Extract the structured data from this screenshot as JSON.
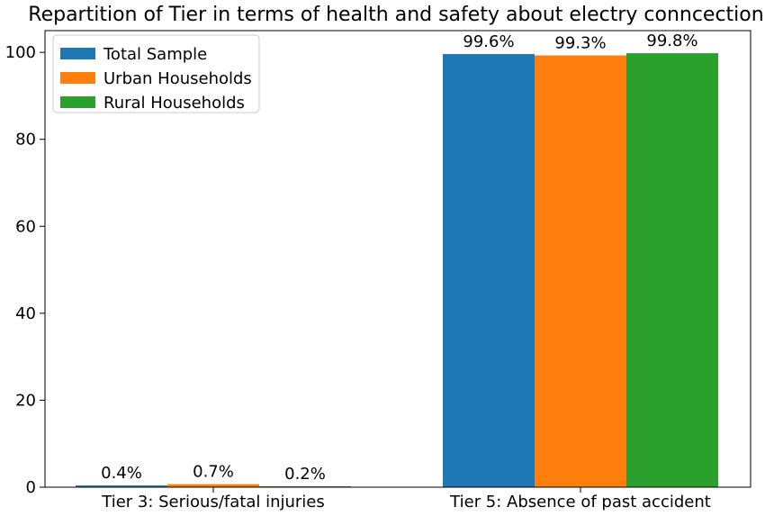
{
  "chart_data": {
    "type": "bar",
    "title": "Repartition of Tier in terms of health and safety about electry conncection",
    "xlabel": "",
    "ylabel": "",
    "categories": [
      "Tier 3: Serious/fatal injuries",
      "Tier 5: Absence of past accident"
    ],
    "series": [
      {
        "name": "Total Sample",
        "color": "#1f77b4",
        "values": [
          0.4,
          99.6
        ],
        "labels": [
          "0.4%",
          "99.6%"
        ]
      },
      {
        "name": "Urban Households",
        "color": "#ff7f0e",
        "values": [
          0.7,
          99.3
        ],
        "labels": [
          "0.7%",
          "99.3%"
        ]
      },
      {
        "name": "Rural Households",
        "color": "#2ca02c",
        "values": [
          0.2,
          99.8
        ],
        "labels": [
          "0.2%",
          "99.8%"
        ]
      }
    ],
    "ylim": [
      0,
      105
    ],
    "yticks": [
      0,
      20,
      40,
      60,
      80,
      100
    ],
    "grid": false,
    "legend_position": "top-left"
  }
}
